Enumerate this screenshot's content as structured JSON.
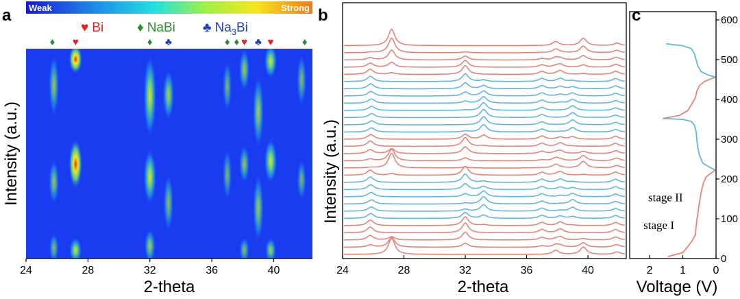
{
  "chart_data": [
    {
      "panel": "a",
      "type": "heatmap",
      "xlabel": "2-theta",
      "ylabel": "Intensity (a.u.)",
      "xlim": [
        24,
        42.5
      ],
      "xticks": [
        24,
        28,
        32,
        36,
        40
      ],
      "colorbar": {
        "low_label": "Weak",
        "high_label": "Strong"
      },
      "legend": [
        {
          "symbol": "♥",
          "label_main": "Bi",
          "label_sub": "",
          "label_tail": "",
          "color": "#e02020"
        },
        {
          "symbol": "♦",
          "label_main": "NaBi",
          "label_sub": "",
          "label_tail": "",
          "color": "#2e8b2e"
        },
        {
          "symbol": "♣",
          "label_main": "Na",
          "label_sub": "3",
          "label_tail": "Bi",
          "color": "#1f3fbf"
        }
      ],
      "phase_markers": [
        {
          "x": 25.7,
          "phase": "NaBi"
        },
        {
          "x": 27.2,
          "phase": "Bi"
        },
        {
          "x": 32.0,
          "phase": "NaBi"
        },
        {
          "x": 33.2,
          "phase": "Na3Bi"
        },
        {
          "x": 37.0,
          "phase": "NaBi"
        },
        {
          "x": 37.6,
          "phase": "NaBi"
        },
        {
          "x": 38.1,
          "phase": "Bi"
        },
        {
          "x": 39.0,
          "phase": "Na3Bi"
        },
        {
          "x": 39.8,
          "phase": "Bi"
        },
        {
          "x": 42.0,
          "phase": "NaBi"
        }
      ],
      "spots": [
        {
          "x": 27.2,
          "t0": 0.0,
          "t1": 0.1,
          "i": 1.0
        },
        {
          "x": 27.2,
          "t0": 0.45,
          "t1": 0.65,
          "i": 1.0
        },
        {
          "x": 27.2,
          "t0": 0.92,
          "t1": 1.0,
          "i": 0.8
        },
        {
          "x": 25.8,
          "t0": 0.05,
          "t1": 0.3,
          "i": 0.5
        },
        {
          "x": 25.8,
          "t0": 0.55,
          "t1": 0.72,
          "i": 0.5
        },
        {
          "x": 25.8,
          "t0": 0.9,
          "t1": 1.0,
          "i": 0.4
        },
        {
          "x": 32.0,
          "t0": 0.05,
          "t1": 0.4,
          "i": 0.85
        },
        {
          "x": 32.0,
          "t0": 0.5,
          "t1": 0.72,
          "i": 0.85
        },
        {
          "x": 32.0,
          "t0": 0.88,
          "t1": 1.0,
          "i": 0.6
        },
        {
          "x": 33.2,
          "t0": 0.12,
          "t1": 0.32,
          "i": 0.65
        },
        {
          "x": 33.2,
          "t0": 0.62,
          "t1": 0.85,
          "i": 0.45
        },
        {
          "x": 37.0,
          "t0": 0.08,
          "t1": 0.28,
          "i": 0.35
        },
        {
          "x": 37.0,
          "t0": 0.5,
          "t1": 0.7,
          "i": 0.35
        },
        {
          "x": 38.1,
          "t0": 0.02,
          "t1": 0.18,
          "i": 0.55
        },
        {
          "x": 38.1,
          "t0": 0.48,
          "t1": 0.62,
          "i": 0.5
        },
        {
          "x": 38.1,
          "t0": 0.92,
          "t1": 1.0,
          "i": 0.45
        },
        {
          "x": 39.0,
          "t0": 0.15,
          "t1": 0.45,
          "i": 0.6
        },
        {
          "x": 39.0,
          "t0": 0.62,
          "t1": 0.9,
          "i": 0.55
        },
        {
          "x": 39.8,
          "t0": 0.0,
          "t1": 0.12,
          "i": 0.85
        },
        {
          "x": 39.8,
          "t0": 0.45,
          "t1": 0.62,
          "i": 0.85
        },
        {
          "x": 39.8,
          "t0": 0.92,
          "t1": 1.0,
          "i": 0.6
        },
        {
          "x": 41.8,
          "t0": 0.05,
          "t1": 0.25,
          "i": 0.4
        },
        {
          "x": 41.8,
          "t0": 0.55,
          "t1": 0.7,
          "i": 0.35
        }
      ]
    },
    {
      "panel": "b",
      "type": "line",
      "xlabel": "2-theta",
      "ylabel": "Intensity (a.u.)",
      "xlim": [
        24,
        42.5
      ],
      "xticks": [
        24,
        28,
        32,
        36,
        40
      ],
      "series_colors": {
        "discharge": "#e8837a",
        "charge": "#5fb8e0"
      },
      "patterns": {
        "bi": [
          {
            "x": 27.2,
            "h": 1.0
          },
          {
            "x": 37.9,
            "h": 0.25
          },
          {
            "x": 39.7,
            "h": 0.45
          },
          {
            "x": 41.9,
            "h": 0.15
          }
        ],
        "nabi": [
          {
            "x": 25.8,
            "h": 0.35
          },
          {
            "x": 32.0,
            "h": 0.6
          },
          {
            "x": 37.0,
            "h": 0.2
          },
          {
            "x": 38.2,
            "h": 0.25
          },
          {
            "x": 41.8,
            "h": 0.2
          }
        ],
        "na3bi": [
          {
            "x": 25.9,
            "h": 0.25
          },
          {
            "x": 33.2,
            "h": 0.5
          },
          {
            "x": 37.0,
            "h": 0.18
          },
          {
            "x": 39.0,
            "h": 0.3
          },
          {
            "x": 41.8,
            "h": 0.15
          }
        ]
      },
      "scans": [
        {
          "bi": 1.0,
          "nabi": 0.0,
          "na3bi": 0.0,
          "color": "discharge"
        },
        {
          "bi": 0.9,
          "nabi": 0.1,
          "na3bi": 0.0,
          "color": "discharge"
        },
        {
          "bi": 0.6,
          "nabi": 0.4,
          "na3bi": 0.0,
          "color": "discharge"
        },
        {
          "bi": 0.3,
          "nabi": 0.7,
          "na3bi": 0.0,
          "color": "discharge"
        },
        {
          "bi": 0.1,
          "nabi": 0.9,
          "na3bi": 0.0,
          "color": "discharge"
        },
        {
          "bi": 0.0,
          "nabi": 0.8,
          "na3bi": 0.2,
          "color": "charge"
        },
        {
          "bi": 0.0,
          "nabi": 0.6,
          "na3bi": 0.4,
          "color": "charge"
        },
        {
          "bi": 0.0,
          "nabi": 0.4,
          "na3bi": 0.6,
          "color": "charge"
        },
        {
          "bi": 0.0,
          "nabi": 0.2,
          "na3bi": 0.8,
          "color": "charge"
        },
        {
          "bi": 0.0,
          "nabi": 0.05,
          "na3bi": 0.95,
          "color": "charge"
        },
        {
          "bi": 0.0,
          "nabi": 0.0,
          "na3bi": 1.0,
          "color": "charge"
        },
        {
          "bi": 0.0,
          "nabi": 0.0,
          "na3bi": 1.0,
          "color": "charge"
        },
        {
          "bi": 0.0,
          "nabi": 0.1,
          "na3bi": 0.9,
          "color": "charge"
        },
        {
          "bi": 0.0,
          "nabi": 0.5,
          "na3bi": 0.5,
          "color": "discharge"
        },
        {
          "bi": 0.0,
          "nabi": 0.9,
          "na3bi": 0.1,
          "color": "discharge"
        },
        {
          "bi": 0.3,
          "nabi": 0.7,
          "na3bi": 0.0,
          "color": "discharge"
        },
        {
          "bi": 0.7,
          "nabi": 0.3,
          "na3bi": 0.0,
          "color": "discharge"
        },
        {
          "bi": 0.9,
          "nabi": 0.1,
          "na3bi": 0.0,
          "color": "discharge"
        },
        {
          "bi": 0.1,
          "nabi": 0.9,
          "na3bi": 0.0,
          "color": "discharge"
        },
        {
          "bi": 0.0,
          "nabi": 0.85,
          "na3bi": 0.15,
          "color": "charge"
        },
        {
          "bi": 0.0,
          "nabi": 0.6,
          "na3bi": 0.4,
          "color": "charge"
        },
        {
          "bi": 0.0,
          "nabi": 0.3,
          "na3bi": 0.7,
          "color": "charge"
        },
        {
          "bi": 0.0,
          "nabi": 0.1,
          "na3bi": 0.9,
          "color": "charge"
        },
        {
          "bi": 0.0,
          "nabi": 0.2,
          "na3bi": 0.8,
          "color": "charge"
        },
        {
          "bi": 0.0,
          "nabi": 0.6,
          "na3bi": 0.4,
          "color": "charge"
        },
        {
          "bi": 0.0,
          "nabi": 0.9,
          "na3bi": 0.1,
          "color": "discharge"
        },
        {
          "bi": 0.0,
          "nabi": 1.0,
          "na3bi": 0.0,
          "color": "discharge"
        },
        {
          "bi": 0.2,
          "nabi": 0.8,
          "na3bi": 0.0,
          "color": "discharge"
        },
        {
          "bi": 0.6,
          "nabi": 0.4,
          "na3bi": 0.0,
          "color": "discharge"
        },
        {
          "bi": 1.0,
          "nabi": 0.0,
          "na3bi": 0.0,
          "color": "discharge"
        }
      ]
    },
    {
      "panel": "c",
      "type": "line",
      "xlabel": "Voltage (V)",
      "ylabel": "",
      "xlim": [
        2.6,
        0
      ],
      "xticks": [
        2,
        1,
        0
      ],
      "ylim": [
        0,
        620
      ],
      "yticks": [
        0,
        100,
        200,
        300,
        400,
        500,
        600
      ],
      "annotations": [
        {
          "text_main": "stage I",
          "at_voltage": 1.35,
          "at_time": 60
        },
        {
          "text_main": "stage II",
          "at_voltage": 1.15,
          "at_time": 130
        }
      ],
      "series": [
        {
          "segment": "discharge-1",
          "color": "#e8837a",
          "points": [
            [
              1.45,
              5
            ],
            [
              1.0,
              15
            ],
            [
              0.85,
              30
            ],
            [
              0.72,
              45
            ],
            [
              0.62,
              60
            ],
            [
              0.6,
              80
            ],
            [
              0.58,
              95
            ],
            [
              0.55,
              110
            ],
            [
              0.52,
              130
            ],
            [
              0.48,
              150
            ],
            [
              0.44,
              170
            ],
            [
              0.38,
              190
            ],
            [
              0.3,
              205
            ],
            [
              0.15,
              215
            ],
            [
              0.02,
              222
            ]
          ]
        },
        {
          "segment": "charge-1",
          "color": "#5fb8e0",
          "points": [
            [
              0.02,
              222
            ],
            [
              0.2,
              230
            ],
            [
              0.4,
              240
            ],
            [
              0.5,
              260
            ],
            [
              0.55,
              280
            ],
            [
              0.58,
              300
            ],
            [
              0.6,
              320
            ],
            [
              0.65,
              335
            ],
            [
              0.75,
              345
            ],
            [
              1.0,
              350
            ],
            [
              1.6,
              352
            ]
          ]
        },
        {
          "segment": "discharge-2",
          "color": "#e8837a",
          "points": [
            [
              1.6,
              352
            ],
            [
              1.1,
              360
            ],
            [
              0.85,
              372
            ],
            [
              0.72,
              390
            ],
            [
              0.62,
              405
            ],
            [
              0.58,
              420
            ],
            [
              0.5,
              435
            ],
            [
              0.35,
              445
            ],
            [
              0.15,
              452
            ],
            [
              0.02,
              456
            ]
          ]
        },
        {
          "segment": "charge-2",
          "color": "#5fb8e0",
          "points": [
            [
              0.02,
              456
            ],
            [
              0.25,
              462
            ],
            [
              0.45,
              470
            ],
            [
              0.55,
              485
            ],
            [
              0.6,
              500
            ],
            [
              0.65,
              515
            ],
            [
              0.75,
              528
            ],
            [
              1.0,
              535
            ],
            [
              1.5,
              540
            ]
          ]
        }
      ]
    }
  ],
  "panel_labels": {
    "a": "a",
    "b": "b",
    "c": "c"
  }
}
